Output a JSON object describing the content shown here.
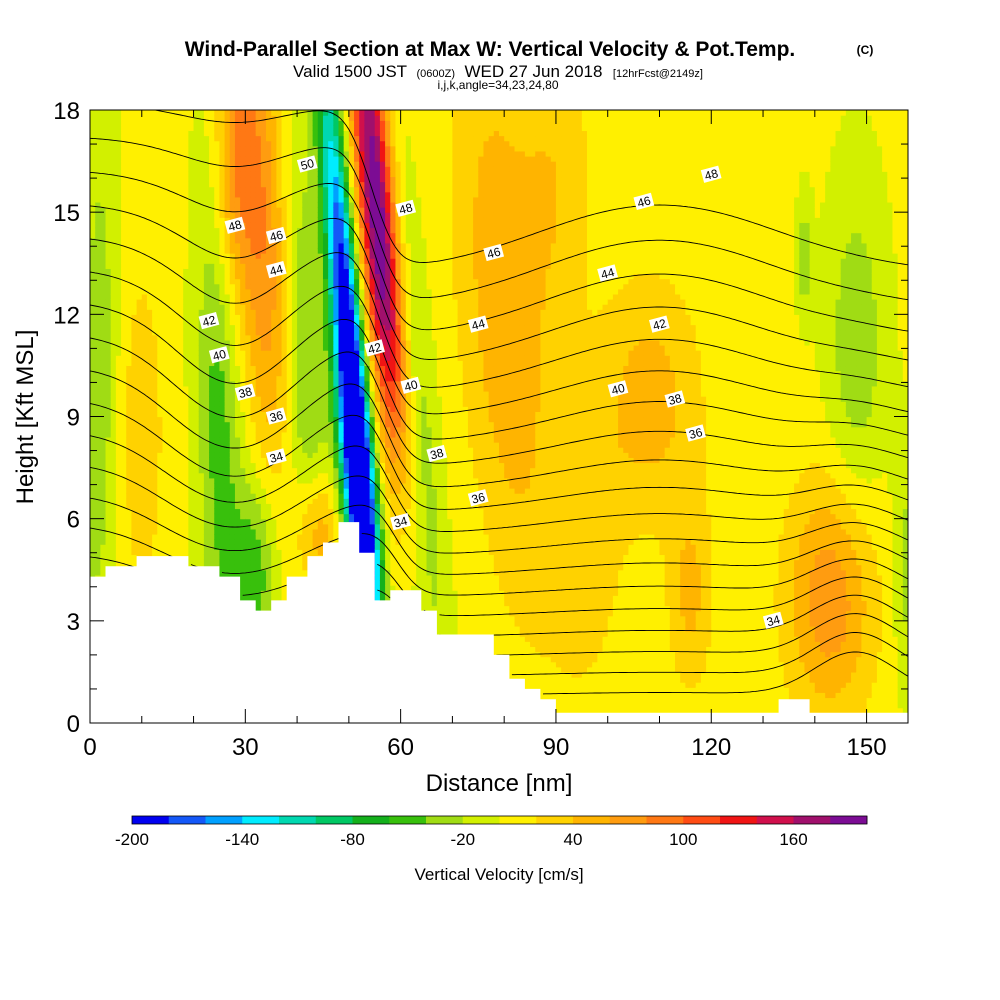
{
  "header": {
    "title": "Wind-Parallel Section at Max W: Vertical Velocity & Pot.Temp.",
    "copyright": "(C)",
    "valid_prefix": "Valid 1500 JST",
    "valid_utc": "(0600Z)",
    "valid_date": "WED 27 Jun 2018",
    "forecast": "[12hrFcst@2149z]",
    "params": "i,j,k,angle=34,23,24,80"
  },
  "chart_data": {
    "type": "heatmap",
    "xlabel": "Distance [nm]",
    "ylabel": "Height [Kft MSL]",
    "xlim": [
      0,
      158
    ],
    "ylim": [
      0,
      18
    ],
    "xticks": [
      0,
      30,
      60,
      90,
      120,
      150
    ],
    "xtick_labels": [
      "0",
      "30",
      "60",
      "90",
      "120",
      "150"
    ],
    "yticks": [
      0,
      3,
      6,
      9,
      12,
      15,
      18
    ],
    "ytick_labels": [
      "0",
      "3",
      "6",
      "9",
      "12",
      "15",
      "18"
    ],
    "colorbar": {
      "title": "Vertical Velocity [cm/s]",
      "min": -200,
      "max": 200,
      "step": 20,
      "tick_values": [
        -200,
        -140,
        -80,
        -20,
        40,
        100,
        160
      ],
      "tick_labels": [
        "-200",
        "-140",
        "-80",
        "-20",
        "40",
        "100",
        "160"
      ],
      "colors": [
        "#0000f0",
        "#1458f8",
        "#00a0ff",
        "#00ecff",
        "#00d8b0",
        "#00c864",
        "#14b01c",
        "#38c00c",
        "#a0dc14",
        "#d2f000",
        "#fff000",
        "#ffd200",
        "#ffb400",
        "#ff9c10",
        "#ff7814",
        "#ff4c14",
        "#f01414",
        "#d0104c",
        "#a0106c",
        "#7c0c94"
      ]
    },
    "terrain": [
      [
        0,
        4.3
      ],
      [
        3,
        4.3
      ],
      [
        3,
        4.6
      ],
      [
        9,
        4.6
      ],
      [
        9,
        4.9
      ],
      [
        19,
        4.9
      ],
      [
        19,
        4.6
      ],
      [
        25,
        4.6
      ],
      [
        25,
        4.3
      ],
      [
        29,
        4.3
      ],
      [
        29,
        3.6
      ],
      [
        32,
        3.6
      ],
      [
        32,
        3.3
      ],
      [
        35,
        3.3
      ],
      [
        35,
        3.6
      ],
      [
        38,
        3.6
      ],
      [
        38,
        4.3
      ],
      [
        42,
        4.3
      ],
      [
        42,
        4.9
      ],
      [
        45,
        4.9
      ],
      [
        45,
        5.3
      ],
      [
        48,
        5.3
      ],
      [
        48,
        5.9
      ],
      [
        52,
        5.9
      ],
      [
        52,
        5.0
      ],
      [
        55,
        5.0
      ],
      [
        55,
        3.6
      ],
      [
        58,
        3.6
      ],
      [
        58,
        3.9
      ],
      [
        64,
        3.9
      ],
      [
        64,
        3.3
      ],
      [
        67,
        3.3
      ],
      [
        67,
        2.6
      ],
      [
        78,
        2.6
      ],
      [
        78,
        2.0
      ],
      [
        81,
        2.0
      ],
      [
        81,
        1.3
      ],
      [
        84,
        1.3
      ],
      [
        84,
        1.0
      ],
      [
        87,
        1.0
      ],
      [
        87,
        0.7
      ],
      [
        90,
        0.7
      ],
      [
        90,
        0.3
      ],
      [
        133,
        0.3
      ],
      [
        133,
        0.7
      ],
      [
        139,
        0.7
      ],
      [
        139,
        0.3
      ],
      [
        158,
        0.3
      ]
    ],
    "velocity_features": [
      {
        "x": 50,
        "y": 11,
        "sx": 2.0,
        "sy": 6.0,
        "value": -210,
        "tilt": -0.55
      },
      {
        "x": 56,
        "y": 14,
        "sx": 2.5,
        "sy": 6.0,
        "value": 210,
        "tilt": -0.55
      },
      {
        "x": 52,
        "y": 6.5,
        "sx": 2.5,
        "sy": 3.0,
        "value": -130,
        "tilt": -0.5
      },
      {
        "x": 60,
        "y": 7,
        "sx": 2.0,
        "sy": 4.0,
        "value": -60,
        "tilt": -0.55
      },
      {
        "x": 42,
        "y": 9,
        "sx": 3.0,
        "sy": 7.0,
        "value": -50,
        "tilt": -0.3
      },
      {
        "x": 64,
        "y": 8,
        "sx": 2.5,
        "sy": 6.0,
        "value": -40,
        "tilt": -0.5
      },
      {
        "x": 34,
        "y": 14,
        "sx": 3.5,
        "sy": 5.0,
        "value": 70,
        "tilt": -0.2
      },
      {
        "x": 28,
        "y": 16.5,
        "sx": 3.0,
        "sy": 3.0,
        "value": 70,
        "tilt": 0
      },
      {
        "x": 25,
        "y": 9,
        "sx": 3.0,
        "sy": 6.0,
        "value": -55,
        "tilt": -0.1
      },
      {
        "x": 32,
        "y": 4.5,
        "sx": 3.0,
        "sy": 2.0,
        "value": -60,
        "tilt": 0
      },
      {
        "x": 44,
        "y": 5.5,
        "sx": 3.0,
        "sy": 1.5,
        "value": 80,
        "tilt": 0
      },
      {
        "x": 80,
        "y": 12,
        "sx": 6.0,
        "sy": 6.0,
        "value": 50,
        "tilt": -0.5
      },
      {
        "x": 108,
        "y": 9.5,
        "sx": 7.0,
        "sy": 2.5,
        "value": 45,
        "tilt": 0
      },
      {
        "x": 143,
        "y": 3.7,
        "sx": 6.0,
        "sy": 2.5,
        "value": 70,
        "tilt": 0
      },
      {
        "x": 116,
        "y": 3.8,
        "sx": 3.0,
        "sy": 2.0,
        "value": 40,
        "tilt": 0
      },
      {
        "x": 148,
        "y": 11,
        "sx": 4.0,
        "sy": 3.5,
        "value": -40,
        "tilt": 0
      },
      {
        "x": 2,
        "y": 12,
        "sx": 2.5,
        "sy": 5.0,
        "value": -30,
        "tilt": 0
      },
      {
        "x": 138,
        "y": 13.7,
        "sx": 1.0,
        "sy": 1.2,
        "value": -40,
        "tilt": 0
      },
      {
        "x": 158,
        "y": 4.5,
        "sx": 2.0,
        "sy": 2.5,
        "value": -35,
        "tilt": 0
      },
      {
        "x": 0,
        "y": 6,
        "sx": 3.0,
        "sy": 4.0,
        "value": -20,
        "tilt": 0
      },
      {
        "x": 10,
        "y": 8.5,
        "sx": 3.0,
        "sy": 3.5,
        "value": 30,
        "tilt": 0
      },
      {
        "x": 90,
        "y": 16,
        "sx": 5.0,
        "sy": 3.0,
        "value": 30,
        "tilt": 0
      },
      {
        "x": 96,
        "y": 5,
        "sx": 5.0,
        "sy": 3.0,
        "value": 25,
        "tilt": 0
      }
    ],
    "theta_contours": {
      "levels_K": [
        33,
        34,
        35,
        36,
        37,
        38,
        39,
        40,
        41,
        42,
        43,
        44,
        45,
        46,
        47,
        48,
        49,
        50,
        51
      ],
      "labels": [
        {
          "text": "34",
          "x": 36,
          "y": 7.8
        },
        {
          "text": "36",
          "x": 36,
          "y": 9.0
        },
        {
          "text": "38",
          "x": 30,
          "y": 9.7
        },
        {
          "text": "40",
          "x": 25,
          "y": 10.8
        },
        {
          "text": "42",
          "x": 23,
          "y": 11.8
        },
        {
          "text": "44",
          "x": 36,
          "y": 13.3
        },
        {
          "text": "46",
          "x": 36,
          "y": 14.3
        },
        {
          "text": "48",
          "x": 28,
          "y": 14.6
        },
        {
          "text": "50",
          "x": 42,
          "y": 16.4
        },
        {
          "text": "48",
          "x": 61,
          "y": 15.1
        },
        {
          "text": "42",
          "x": 55,
          "y": 11.0
        },
        {
          "text": "40",
          "x": 62,
          "y": 9.9
        },
        {
          "text": "38",
          "x": 67,
          "y": 7.9
        },
        {
          "text": "34",
          "x": 60,
          "y": 5.9
        },
        {
          "text": "36",
          "x": 75,
          "y": 6.6
        },
        {
          "text": "44",
          "x": 75,
          "y": 11.7
        },
        {
          "text": "46",
          "x": 78,
          "y": 13.8
        },
        {
          "text": "44",
          "x": 100,
          "y": 13.2
        },
        {
          "text": "42",
          "x": 110,
          "y": 11.7
        },
        {
          "text": "40",
          "x": 102,
          "y": 9.8
        },
        {
          "text": "38",
          "x": 113,
          "y": 9.5
        },
        {
          "text": "36",
          "x": 117,
          "y": 8.5
        },
        {
          "text": "48",
          "x": 120,
          "y": 16.1
        },
        {
          "text": "46",
          "x": 107,
          "y": 15.3
        },
        {
          "text": "34",
          "x": 132,
          "y": 3.0
        }
      ]
    }
  }
}
